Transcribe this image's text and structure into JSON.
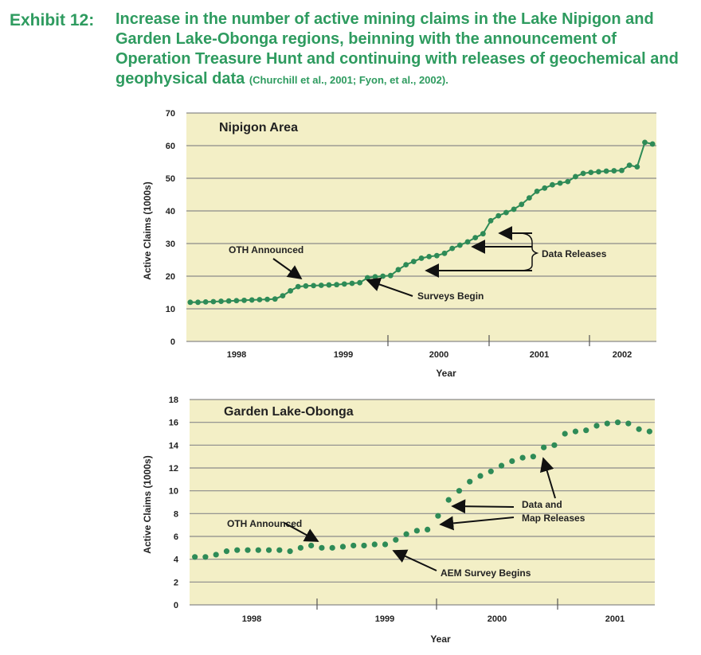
{
  "exhibit": "Exhibit 12:",
  "caption_main": "Increase in the number of active mining claims in the Lake Nipigon and Garden Lake-Obonga regions, beinning with the announcement of Operation Treasure Hunt and continuing with releases of geochemical and geophysical data ",
  "caption_cite": "(Churchill et al., 2001; Fyon, et al., 2002).",
  "colors": {
    "title": "#2e9b5f",
    "plot_bg": "#f3efc6",
    "grid": "#8a8a8a",
    "series": "#2e8b57"
  },
  "chart_data": [
    {
      "type": "scatter",
      "title": "Nipigon Area",
      "xlabel": "Year",
      "ylabel": "Active Claims (1000s)",
      "ylim": [
        0,
        70
      ],
      "yticks": [
        0,
        10,
        20,
        30,
        40,
        50,
        60,
        70
      ],
      "year_labels": [
        "1998",
        "1999",
        "2000",
        "2001",
        "2002"
      ],
      "connected": true,
      "grid": "horizontal",
      "series": [
        {
          "values": [
            12.0,
            12.0,
            12.1,
            12.2,
            12.3,
            12.4,
            12.5,
            12.6,
            12.7,
            12.8,
            12.9,
            13.0,
            14.0,
            15.5,
            16.8,
            17.0,
            17.1,
            17.2,
            17.3,
            17.4,
            17.6,
            17.8,
            18.0,
            19.5,
            19.8,
            20.0,
            20.2,
            22.0,
            23.5,
            24.5,
            25.5,
            26.0,
            26.3,
            27.0,
            28.5,
            29.5,
            30.5,
            31.8,
            33.0,
            37.0,
            38.5,
            39.5,
            40.5,
            42.0,
            44.0,
            46.0,
            47.0,
            48.0,
            48.5,
            49.0,
            50.5,
            51.5,
            51.8,
            52.0,
            52.2,
            52.3,
            52.4,
            54.0,
            53.5,
            61.0,
            60.5
          ]
        }
      ],
      "annotations": [
        {
          "text": "OTH Announced"
        },
        {
          "text": "Surveys Begin"
        },
        {
          "text": "Data Releases"
        }
      ]
    },
    {
      "type": "scatter",
      "title": "Garden Lake-Obonga",
      "xlabel": "Year",
      "ylabel": "Active Claims (1000s)",
      "ylim": [
        0,
        18
      ],
      "yticks": [
        0,
        2,
        4,
        6,
        8,
        10,
        12,
        14,
        16,
        18
      ],
      "year_labels": [
        "1998",
        "1999",
        "2000",
        "2001"
      ],
      "connected": false,
      "grid": "horizontal",
      "series": [
        {
          "values": [
            4.2,
            4.2,
            4.4,
            4.7,
            4.8,
            4.8,
            4.8,
            4.8,
            4.8,
            4.7,
            5.0,
            5.2,
            5.0,
            5.0,
            5.1,
            5.2,
            5.2,
            5.3,
            5.3,
            5.7,
            6.2,
            6.5,
            6.6,
            7.8,
            9.2,
            10.0,
            10.8,
            11.3,
            11.7,
            12.2,
            12.6,
            12.9,
            13.0,
            13.8,
            14.0,
            15.0,
            15.2,
            15.3,
            15.7,
            15.9,
            16.0,
            15.9,
            15.4,
            15.2
          ]
        }
      ],
      "annotations": [
        {
          "text": "OTH Announced"
        },
        {
          "text": "AEM Survey Begins"
        },
        {
          "text": "Data and"
        },
        {
          "text": "Map Releases"
        }
      ]
    }
  ]
}
